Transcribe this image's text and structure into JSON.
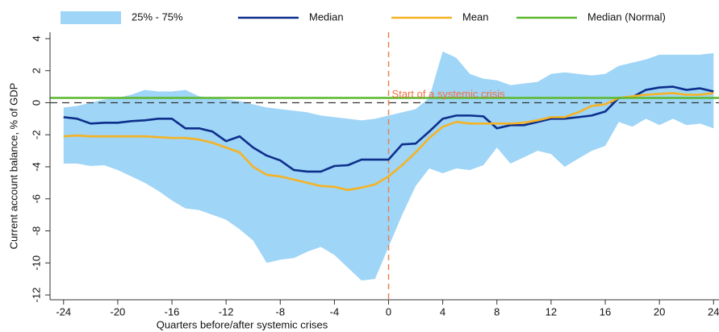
{
  "chart_data": {
    "type": "line",
    "xlabel": "Quarters before/after systemic crises",
    "ylabel": "Current account balance, % of GDP",
    "x": [
      -24,
      -23,
      -22,
      -21,
      -20,
      -19,
      -18,
      -17,
      -16,
      -15,
      -14,
      -13,
      -12,
      -11,
      -10,
      -9,
      -8,
      -7,
      -6,
      -5,
      -4,
      -3,
      -2,
      -1,
      0,
      1,
      2,
      3,
      4,
      5,
      6,
      7,
      8,
      9,
      10,
      11,
      12,
      13,
      14,
      15,
      16,
      17,
      18,
      19,
      20,
      21,
      22,
      23,
      24
    ],
    "series": [
      {
        "name": "25% - 75%",
        "color": "#9fd5f6",
        "low": [
          -3.8,
          -3.8,
          -3.95,
          -3.9,
          -4.2,
          -4.6,
          -5.0,
          -5.5,
          -6.1,
          -6.6,
          -6.7,
          -7.0,
          -7.3,
          -7.9,
          -8.6,
          -10.0,
          -9.8,
          -9.7,
          -9.3,
          -9.0,
          -9.5,
          -10.3,
          -11.1,
          -11.0,
          -9.0,
          -7.0,
          -5.2,
          -4.1,
          -4.4,
          -4.1,
          -4.2,
          -3.9,
          -2.8,
          -3.8,
          -3.4,
          -3.0,
          -3.2,
          -4.0,
          -3.5,
          -3.0,
          -2.7,
          -1.2,
          -1.5,
          -1.0,
          -1.4,
          -1.0,
          -1.4,
          -1.3,
          -1.6
        ],
        "high": [
          -0.3,
          -0.2,
          0.0,
          0.2,
          0.3,
          0.5,
          0.8,
          0.7,
          0.7,
          0.8,
          0.4,
          0.3,
          0.2,
          0.1,
          -0.1,
          -0.3,
          -0.4,
          -0.5,
          -0.6,
          -0.8,
          -0.9,
          -1.0,
          -1.1,
          -1.0,
          -0.8,
          -0.6,
          -0.4,
          0.3,
          3.2,
          2.8,
          1.8,
          1.5,
          1.4,
          1.1,
          1.2,
          1.3,
          1.8,
          1.9,
          1.8,
          1.7,
          1.8,
          2.3,
          2.5,
          2.7,
          3.0,
          3.0,
          3.0,
          3.0,
          3.1
        ]
      },
      {
        "name": "Median",
        "color": "#0d2f8c",
        "values": [
          -0.9,
          -1.0,
          -1.3,
          -1.25,
          -1.25,
          -1.15,
          -1.1,
          -1.0,
          -1.0,
          -1.6,
          -1.6,
          -1.8,
          -2.4,
          -2.1,
          -2.8,
          -3.3,
          -3.6,
          -4.2,
          -4.3,
          -4.3,
          -3.95,
          -3.9,
          -3.55,
          -3.55,
          -3.55,
          -2.6,
          -2.55,
          -1.8,
          -1.0,
          -0.8,
          -0.8,
          -0.85,
          -1.6,
          -1.4,
          -1.4,
          -1.2,
          -1.0,
          -1.0,
          -0.9,
          -0.8,
          -0.55,
          0.3,
          0.35,
          0.8,
          0.95,
          1.0,
          0.8,
          0.9,
          0.7
        ]
      },
      {
        "name": "Mean",
        "color": "#f5b324",
        "values": [
          -2.1,
          -2.05,
          -2.1,
          -2.1,
          -2.1,
          -2.1,
          -2.1,
          -2.15,
          -2.2,
          -2.2,
          -2.3,
          -2.5,
          -2.8,
          -3.1,
          -4.0,
          -4.5,
          -4.6,
          -4.8,
          -5.0,
          -5.2,
          -5.25,
          -5.45,
          -5.3,
          -5.1,
          -4.6,
          -3.9,
          -3.1,
          -2.2,
          -1.5,
          -1.2,
          -1.3,
          -1.3,
          -1.3,
          -1.3,
          -1.25,
          -1.1,
          -0.9,
          -0.9,
          -0.6,
          -0.2,
          -0.1,
          0.3,
          0.4,
          0.5,
          0.55,
          0.6,
          0.5,
          0.5,
          0.6
        ]
      },
      {
        "name": "Median (Normal)",
        "color": "#5cb82e",
        "value": 0.3
      }
    ],
    "hline": 0,
    "vline": 0,
    "annotation": {
      "text": "Start of a systemic crisis",
      "x": 0,
      "y": 0.3,
      "color": "#f07040"
    },
    "xlim": [
      -25,
      24.4
    ],
    "ylim": [
      -12.3,
      4.4
    ],
    "xticks": [
      -24,
      -20,
      -16,
      -12,
      -8,
      -4,
      0,
      4,
      8,
      12,
      16,
      20,
      24
    ],
    "yticks": [
      4,
      2,
      0,
      -2,
      -4,
      -6,
      -8,
      -10,
      -12
    ]
  }
}
